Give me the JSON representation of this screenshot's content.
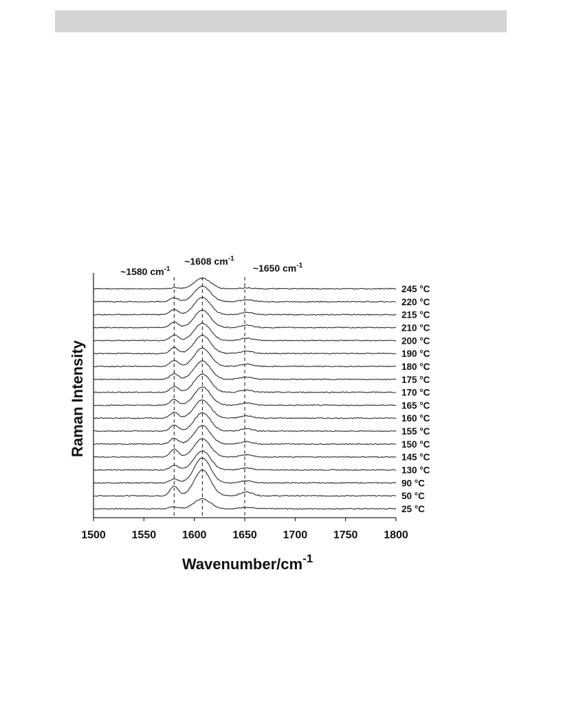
{
  "chart_data": {
    "type": "line",
    "xlabel": "Wavenumber/cm",
    "xlabel_sup": "-1",
    "ylabel": "Raman Intensity",
    "xlim": [
      1500,
      1800
    ],
    "xticks": [
      1500,
      1550,
      1600,
      1650,
      1700,
      1750,
      1800
    ],
    "reference_lines": [
      {
        "x": 1580,
        "label": "~1580 cm",
        "sup": "-1"
      },
      {
        "x": 1608,
        "label": "~1608 cm",
        "sup": "-1"
      },
      {
        "x": 1650,
        "label": "~1650 cm",
        "sup": "-1"
      }
    ],
    "series": [
      {
        "name": "25 °C",
        "peaks": [
          {
            "x": 1580,
            "h": 0.1
          },
          {
            "x": 1608,
            "h": 0.52
          },
          {
            "x": 1652,
            "h": 0.08
          }
        ]
      },
      {
        "name": "50 °C",
        "peaks": [
          {
            "x": 1580,
            "h": 0.5
          },
          {
            "x": 1608,
            "h": 1.35
          },
          {
            "x": 1652,
            "h": 0.2
          }
        ]
      },
      {
        "name": "90 °C",
        "peaks": [
          {
            "x": 1580,
            "h": 0.2
          },
          {
            "x": 1608,
            "h": 1.3
          },
          {
            "x": 1652,
            "h": 0.1
          }
        ]
      },
      {
        "name": "130 °C",
        "peaks": [
          {
            "x": 1580,
            "h": 0.25
          },
          {
            "x": 1608,
            "h": 1.0
          },
          {
            "x": 1652,
            "h": 0.1
          }
        ]
      },
      {
        "name": "145 °C",
        "peaks": [
          {
            "x": 1580,
            "h": 0.4
          },
          {
            "x": 1608,
            "h": 0.95
          },
          {
            "x": 1652,
            "h": 0.12
          }
        ]
      },
      {
        "name": "150 °C",
        "peaks": [
          {
            "x": 1580,
            "h": 0.3
          },
          {
            "x": 1608,
            "h": 0.95
          },
          {
            "x": 1652,
            "h": 0.12
          }
        ]
      },
      {
        "name": "155 °C",
        "peaks": [
          {
            "x": 1580,
            "h": 0.3
          },
          {
            "x": 1608,
            "h": 0.95
          },
          {
            "x": 1652,
            "h": 0.12
          }
        ]
      },
      {
        "name": "160 °C",
        "peaks": [
          {
            "x": 1580,
            "h": 0.3
          },
          {
            "x": 1608,
            "h": 0.95
          },
          {
            "x": 1652,
            "h": 0.12
          }
        ]
      },
      {
        "name": "165 °C",
        "peaks": [
          {
            "x": 1580,
            "h": 0.3
          },
          {
            "x": 1608,
            "h": 0.95
          },
          {
            "x": 1652,
            "h": 0.12
          }
        ]
      },
      {
        "name": "170 °C",
        "peaks": [
          {
            "x": 1580,
            "h": 0.3
          },
          {
            "x": 1608,
            "h": 0.95
          },
          {
            "x": 1652,
            "h": 0.12
          }
        ]
      },
      {
        "name": "175 °C",
        "peaks": [
          {
            "x": 1580,
            "h": 0.3
          },
          {
            "x": 1608,
            "h": 0.95
          },
          {
            "x": 1652,
            "h": 0.12
          }
        ]
      },
      {
        "name": "180 °C",
        "peaks": [
          {
            "x": 1580,
            "h": 0.3
          },
          {
            "x": 1608,
            "h": 0.95
          },
          {
            "x": 1652,
            "h": 0.12
          }
        ]
      },
      {
        "name": "190 °C",
        "peaks": [
          {
            "x": 1580,
            "h": 0.3
          },
          {
            "x": 1608,
            "h": 0.95
          },
          {
            "x": 1652,
            "h": 0.12
          }
        ]
      },
      {
        "name": "200 °C",
        "peaks": [
          {
            "x": 1580,
            "h": 0.28
          },
          {
            "x": 1608,
            "h": 0.9
          },
          {
            "x": 1652,
            "h": 0.12
          }
        ]
      },
      {
        "name": "210 °C",
        "peaks": [
          {
            "x": 1580,
            "h": 0.28
          },
          {
            "x": 1608,
            "h": 0.9
          },
          {
            "x": 1652,
            "h": 0.12
          }
        ]
      },
      {
        "name": "215 °C",
        "peaks": [
          {
            "x": 1580,
            "h": 0.28
          },
          {
            "x": 1608,
            "h": 0.9
          },
          {
            "x": 1652,
            "h": 0.12
          }
        ]
      },
      {
        "name": "220 °C",
        "peaks": [
          {
            "x": 1580,
            "h": 0.2
          },
          {
            "x": 1608,
            "h": 0.8
          },
          {
            "x": 1652,
            "h": 0.1
          }
        ]
      },
      {
        "name": "245 °C",
        "peaks": [
          {
            "x": 1580,
            "h": 0.05
          },
          {
            "x": 1608,
            "h": 0.55
          },
          {
            "x": 1652,
            "h": 0.05
          }
        ]
      }
    ],
    "y_ticks_shown": false
  }
}
